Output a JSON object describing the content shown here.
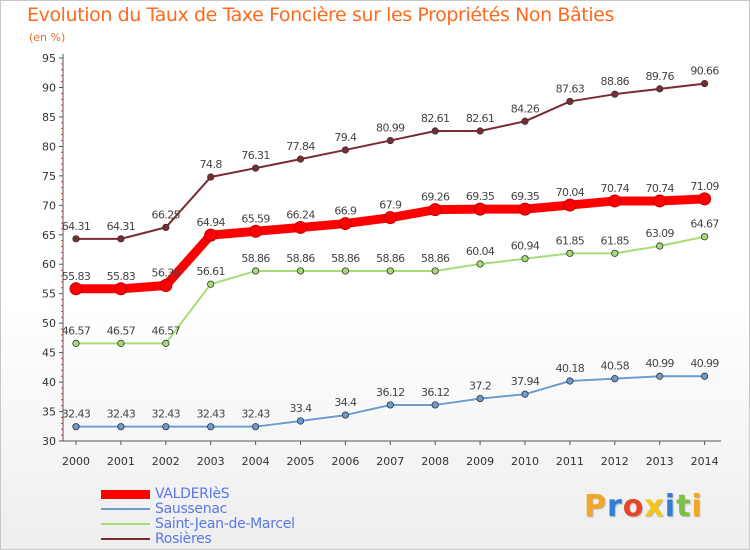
{
  "chart_data": {
    "type": "line",
    "title": "Evolution du Taux de Taxe Foncière sur les Propriétés Non Bâties",
    "unit_label": "(en %)",
    "x": [
      "2000",
      "2001",
      "2002",
      "2003",
      "2004",
      "2005",
      "2006",
      "2007",
      "2008",
      "2009",
      "2010",
      "2011",
      "2012",
      "2013",
      "2014"
    ],
    "ylim": [
      30,
      95
    ],
    "yticks": [
      "30",
      "35",
      "40",
      "45",
      "50",
      "55",
      "60",
      "65",
      "70",
      "75",
      "80",
      "85",
      "90",
      "95"
    ],
    "grid": false,
    "legend_position": "bottom-left",
    "series": [
      {
        "name": "VALDERIèS",
        "color": "#ff0000",
        "values": [
          55.83,
          55.83,
          56.39,
          64.94,
          65.59,
          66.24,
          66.9,
          67.9,
          69.26,
          69.35,
          69.35,
          70.04,
          70.74,
          70.74,
          71.09
        ],
        "labels": [
          "55.83",
          "55.83",
          "56.39",
          "64.94",
          "65.59",
          "66.24",
          "66.9",
          "67.9",
          "69.26",
          "69.35",
          "69.35",
          "70.04",
          "70.74",
          "70.74",
          "71.09"
        ]
      },
      {
        "name": "Saussenac",
        "color": "#6a9cd0",
        "values": [
          32.43,
          32.43,
          32.43,
          32.43,
          32.43,
          33.4,
          34.4,
          36.12,
          36.12,
          37.2,
          37.94,
          40.18,
          40.58,
          40.99,
          40.99
        ],
        "labels": [
          "32.43",
          "32.43",
          "32.43",
          "32.43",
          "32.43",
          "33.4",
          "34.4",
          "36.12",
          "36.12",
          "37.2",
          "37.94",
          "40.18",
          "40.58",
          "40.99",
          "40.99"
        ]
      },
      {
        "name": "Saint-Jean-de-Marcel",
        "color": "#a6dc78",
        "values": [
          46.57,
          46.57,
          46.57,
          56.61,
          58.86,
          58.86,
          58.86,
          58.86,
          58.86,
          60.04,
          60.94,
          61.85,
          61.85,
          63.09,
          64.67
        ],
        "labels": [
          "46.57",
          "46.57",
          "46.57",
          "56.61",
          "58.86",
          "58.86",
          "58.86",
          "58.86",
          "58.86",
          "60.04",
          "60.94",
          "61.85",
          "61.85",
          "63.09",
          "64.67"
        ]
      },
      {
        "name": "Rosières",
        "color": "#7b2c33",
        "values": [
          64.31,
          64.31,
          66.25,
          74.8,
          76.31,
          77.84,
          79.4,
          80.99,
          82.61,
          82.61,
          84.26,
          87.63,
          88.86,
          89.76,
          90.66
        ],
        "labels": [
          "64.31",
          "64.31",
          "66.25",
          "74.8",
          "76.31",
          "77.84",
          "79.4",
          "80.99",
          "82.61",
          "82.61",
          "84.26",
          "87.63",
          "88.86",
          "89.76",
          "90.66"
        ]
      }
    ]
  },
  "logo": {
    "letters": [
      "P",
      "r",
      "o",
      "x",
      "i",
      "t",
      "i"
    ],
    "colors": [
      "#f5a623",
      "#2f7fd6",
      "#e8442c",
      "#f5c518",
      "#2f7fd6",
      "#7ac143",
      "#f5a623"
    ]
  }
}
